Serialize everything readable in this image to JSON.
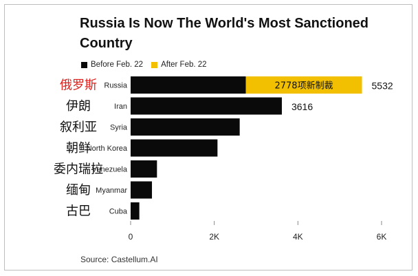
{
  "colors": {
    "before": "#0a0a0a",
    "after": "#f2c000",
    "highlight_label": "#e0201c",
    "axis": "#888888"
  },
  "chart_data": {
    "type": "bar",
    "orientation": "horizontal",
    "stacked": true,
    "title": "Russia Is Now The World's Most Sanctioned Country",
    "categories": [
      "Russia",
      "Iran",
      "Syria",
      "North Korea",
      "Venezuela",
      "Myanmar",
      "Cuba"
    ],
    "category_labels_zh": [
      "俄罗斯",
      "伊朗",
      "叙利亚",
      "朝鲜",
      "委内瑞拉",
      "缅甸",
      "古巴"
    ],
    "series": [
      {
        "name": "Before Feb. 22",
        "values": [
          2754,
          3616,
          2608,
          2077,
          630,
          510,
          208
        ]
      },
      {
        "name": "After Feb. 22",
        "values": [
          2778,
          0,
          0,
          0,
          0,
          0,
          0
        ]
      }
    ],
    "total_labels": [
      "5532",
      "3616",
      "",
      "",
      "",
      "",
      ""
    ],
    "segment_annotations": [
      "2778项新制裁",
      "",
      "",
      "",
      "",
      "",
      ""
    ],
    "xticks": [
      0,
      2000,
      4000,
      6000
    ],
    "xtick_labels": [
      "0",
      "2K",
      "4K",
      "6K"
    ],
    "xlim": [
      0,
      6000
    ],
    "xlabel": "",
    "ylabel": "",
    "legend_position": "top-left",
    "grid": false,
    "source": "Source: Castellum.AI"
  }
}
